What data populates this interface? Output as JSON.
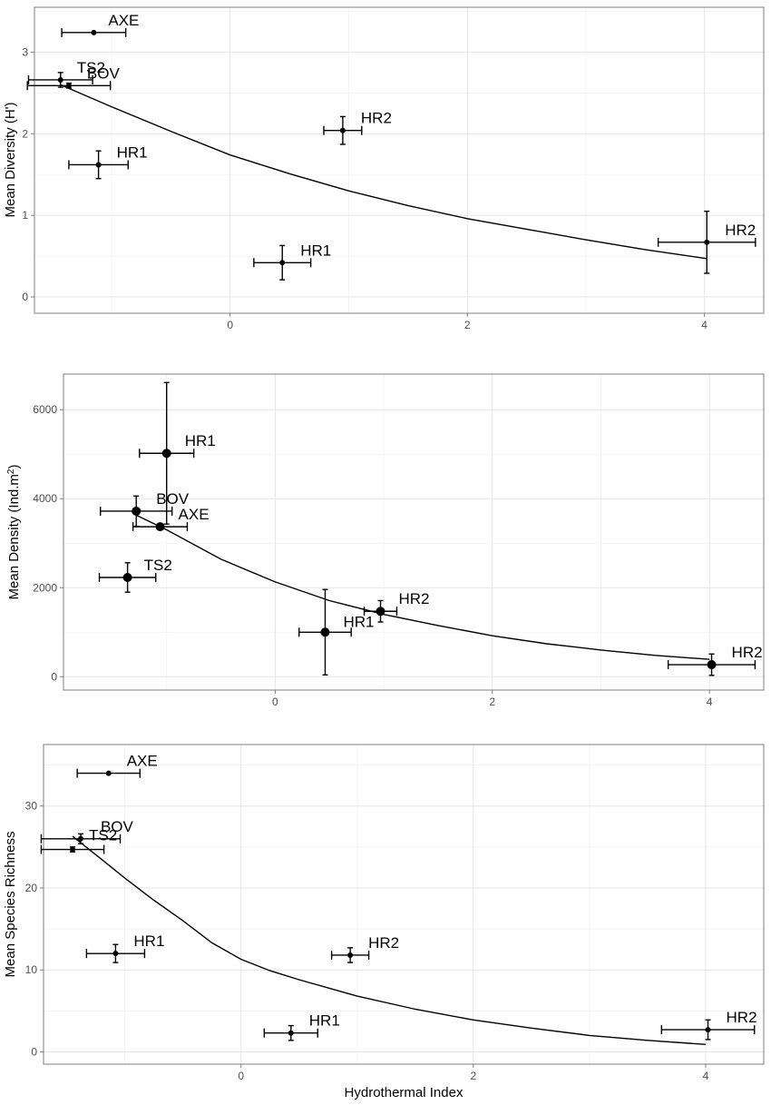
{
  "chart_data": [
    {
      "type": "scatter",
      "title": "",
      "xlabel": "",
      "ylabel": "Mean Diversity (H')",
      "xlim": [
        -1.65,
        4.5
      ],
      "ylim": [
        -0.2,
        3.55
      ],
      "xticks": [
        0,
        2,
        4
      ],
      "yticks": [
        0,
        1,
        2,
        3
      ],
      "grid": true,
      "marker_size": "small",
      "points": [
        {
          "label": "AXE",
          "x": -1.15,
          "y": 3.24,
          "xerr": 0.27,
          "yerr": 0
        },
        {
          "label": "TS2",
          "x": -1.43,
          "y": 2.66,
          "xerr": 0.27,
          "yerr": 0.09
        },
        {
          "label": "BOV",
          "x": -1.36,
          "y": 2.59,
          "xerr": 0.35,
          "yerr": 0.03
        },
        {
          "label": "HR2",
          "x": 0.95,
          "y": 2.04,
          "xerr": 0.16,
          "yerr": 0.17
        },
        {
          "label": "HR1",
          "x": -1.11,
          "y": 1.62,
          "xerr": 0.25,
          "yerr": 0.17
        },
        {
          "label": "HR1",
          "x": 0.44,
          "y": 0.42,
          "xerr": 0.24,
          "yerr": 0.21
        },
        {
          "label": "HR2",
          "x": 4.02,
          "y": 0.67,
          "xerr": 0.41,
          "yerr": 0.38
        }
      ],
      "fit_curve": {
        "x": [
          -1.43,
          -1.0,
          -0.5,
          0,
          0.5,
          1.0,
          1.5,
          2.0,
          2.5,
          3.0,
          3.5,
          4.02
        ],
        "y": [
          2.6,
          2.33,
          2.03,
          1.74,
          1.51,
          1.3,
          1.12,
          0.96,
          0.83,
          0.7,
          0.58,
          0.47
        ]
      }
    },
    {
      "type": "scatter",
      "title": "",
      "xlabel": "",
      "ylabel": "Mean Density  (Ind.m",
      "ylabel_sup": "2",
      "ylabel_end": ")",
      "xlim": [
        -1.95,
        4.5
      ],
      "ylim": [
        -300,
        6800
      ],
      "xticks": [
        0,
        2,
        4
      ],
      "yticks": [
        0,
        2000,
        4000,
        6000
      ],
      "grid": true,
      "marker_size": "large",
      "points": [
        {
          "label": "HR1",
          "x": -1.0,
          "y": 5020,
          "xerr": 0.25,
          "yerr": 1590
        },
        {
          "label": "BOV",
          "x": -1.28,
          "y": 3720,
          "xerr": 0.33,
          "yerr": 340
        },
        {
          "label": "AXE",
          "x": -1.06,
          "y": 3370,
          "xerr": 0.25,
          "yerr": 0
        },
        {
          "label": "TS2",
          "x": -1.36,
          "y": 2230,
          "xerr": 0.26,
          "yerr": 330
        },
        {
          "label": "HR2",
          "x": 0.97,
          "y": 1470,
          "xerr": 0.15,
          "yerr": 240
        },
        {
          "label": "HR1",
          "x": 0.46,
          "y": 1000,
          "xerr": 0.24,
          "yerr": 960
        },
        {
          "label": "HR2",
          "x": 4.02,
          "y": 270,
          "xerr": 0.4,
          "yerr": 240
        }
      ],
      "fit_curve": {
        "x": [
          -1.28,
          -1.0,
          -0.5,
          0,
          0.5,
          1.0,
          1.5,
          2.0,
          2.5,
          3.0,
          3.5,
          4.0
        ],
        "y": [
          3630,
          3300,
          2640,
          2130,
          1710,
          1400,
          1150,
          920,
          740,
          600,
          480,
          390
        ]
      }
    },
    {
      "type": "scatter",
      "title": "",
      "xlabel": "Hydrothermal Index",
      "ylabel": "Mean Species Richness",
      "xlim": [
        -1.7,
        4.5
      ],
      "ylim": [
        -1.5,
        37.5
      ],
      "xticks": [
        0,
        2,
        4
      ],
      "yticks": [
        0,
        10,
        20,
        30
      ],
      "grid": true,
      "marker_size": "small",
      "points": [
        {
          "label": "AXE",
          "x": -1.14,
          "y": 34.0,
          "xerr": 0.27,
          "yerr": 0
        },
        {
          "label": "BOV",
          "x": -1.38,
          "y": 26.0,
          "xerr": 0.34,
          "yerr": 0.6
        },
        {
          "label": "TS2",
          "x": -1.45,
          "y": 24.7,
          "xerr": 0.27,
          "yerr": 0.3
        },
        {
          "label": "HR1",
          "x": -1.08,
          "y": 12.0,
          "xerr": 0.25,
          "yerr": 1.1
        },
        {
          "label": "HR2",
          "x": 0.94,
          "y": 11.8,
          "xerr": 0.16,
          "yerr": 0.9
        },
        {
          "label": "HR1",
          "x": 0.43,
          "y": 2.3,
          "xerr": 0.23,
          "yerr": 0.9
        },
        {
          "label": "HR2",
          "x": 4.02,
          "y": 2.7,
          "xerr": 0.4,
          "yerr": 1.2
        }
      ],
      "fit_curve": {
        "x": [
          -1.45,
          -1.2,
          -1.0,
          -0.75,
          -0.5,
          -0.25,
          0,
          0.25,
          0.5,
          1.0,
          1.5,
          2.0,
          2.5,
          3.0,
          3.5,
          4.0
        ],
        "y": [
          26.3,
          23.5,
          21.2,
          18.5,
          16.0,
          13.3,
          11.3,
          9.9,
          8.8,
          6.8,
          5.2,
          3.9,
          2.9,
          2.0,
          1.4,
          0.9
        ]
      }
    }
  ]
}
